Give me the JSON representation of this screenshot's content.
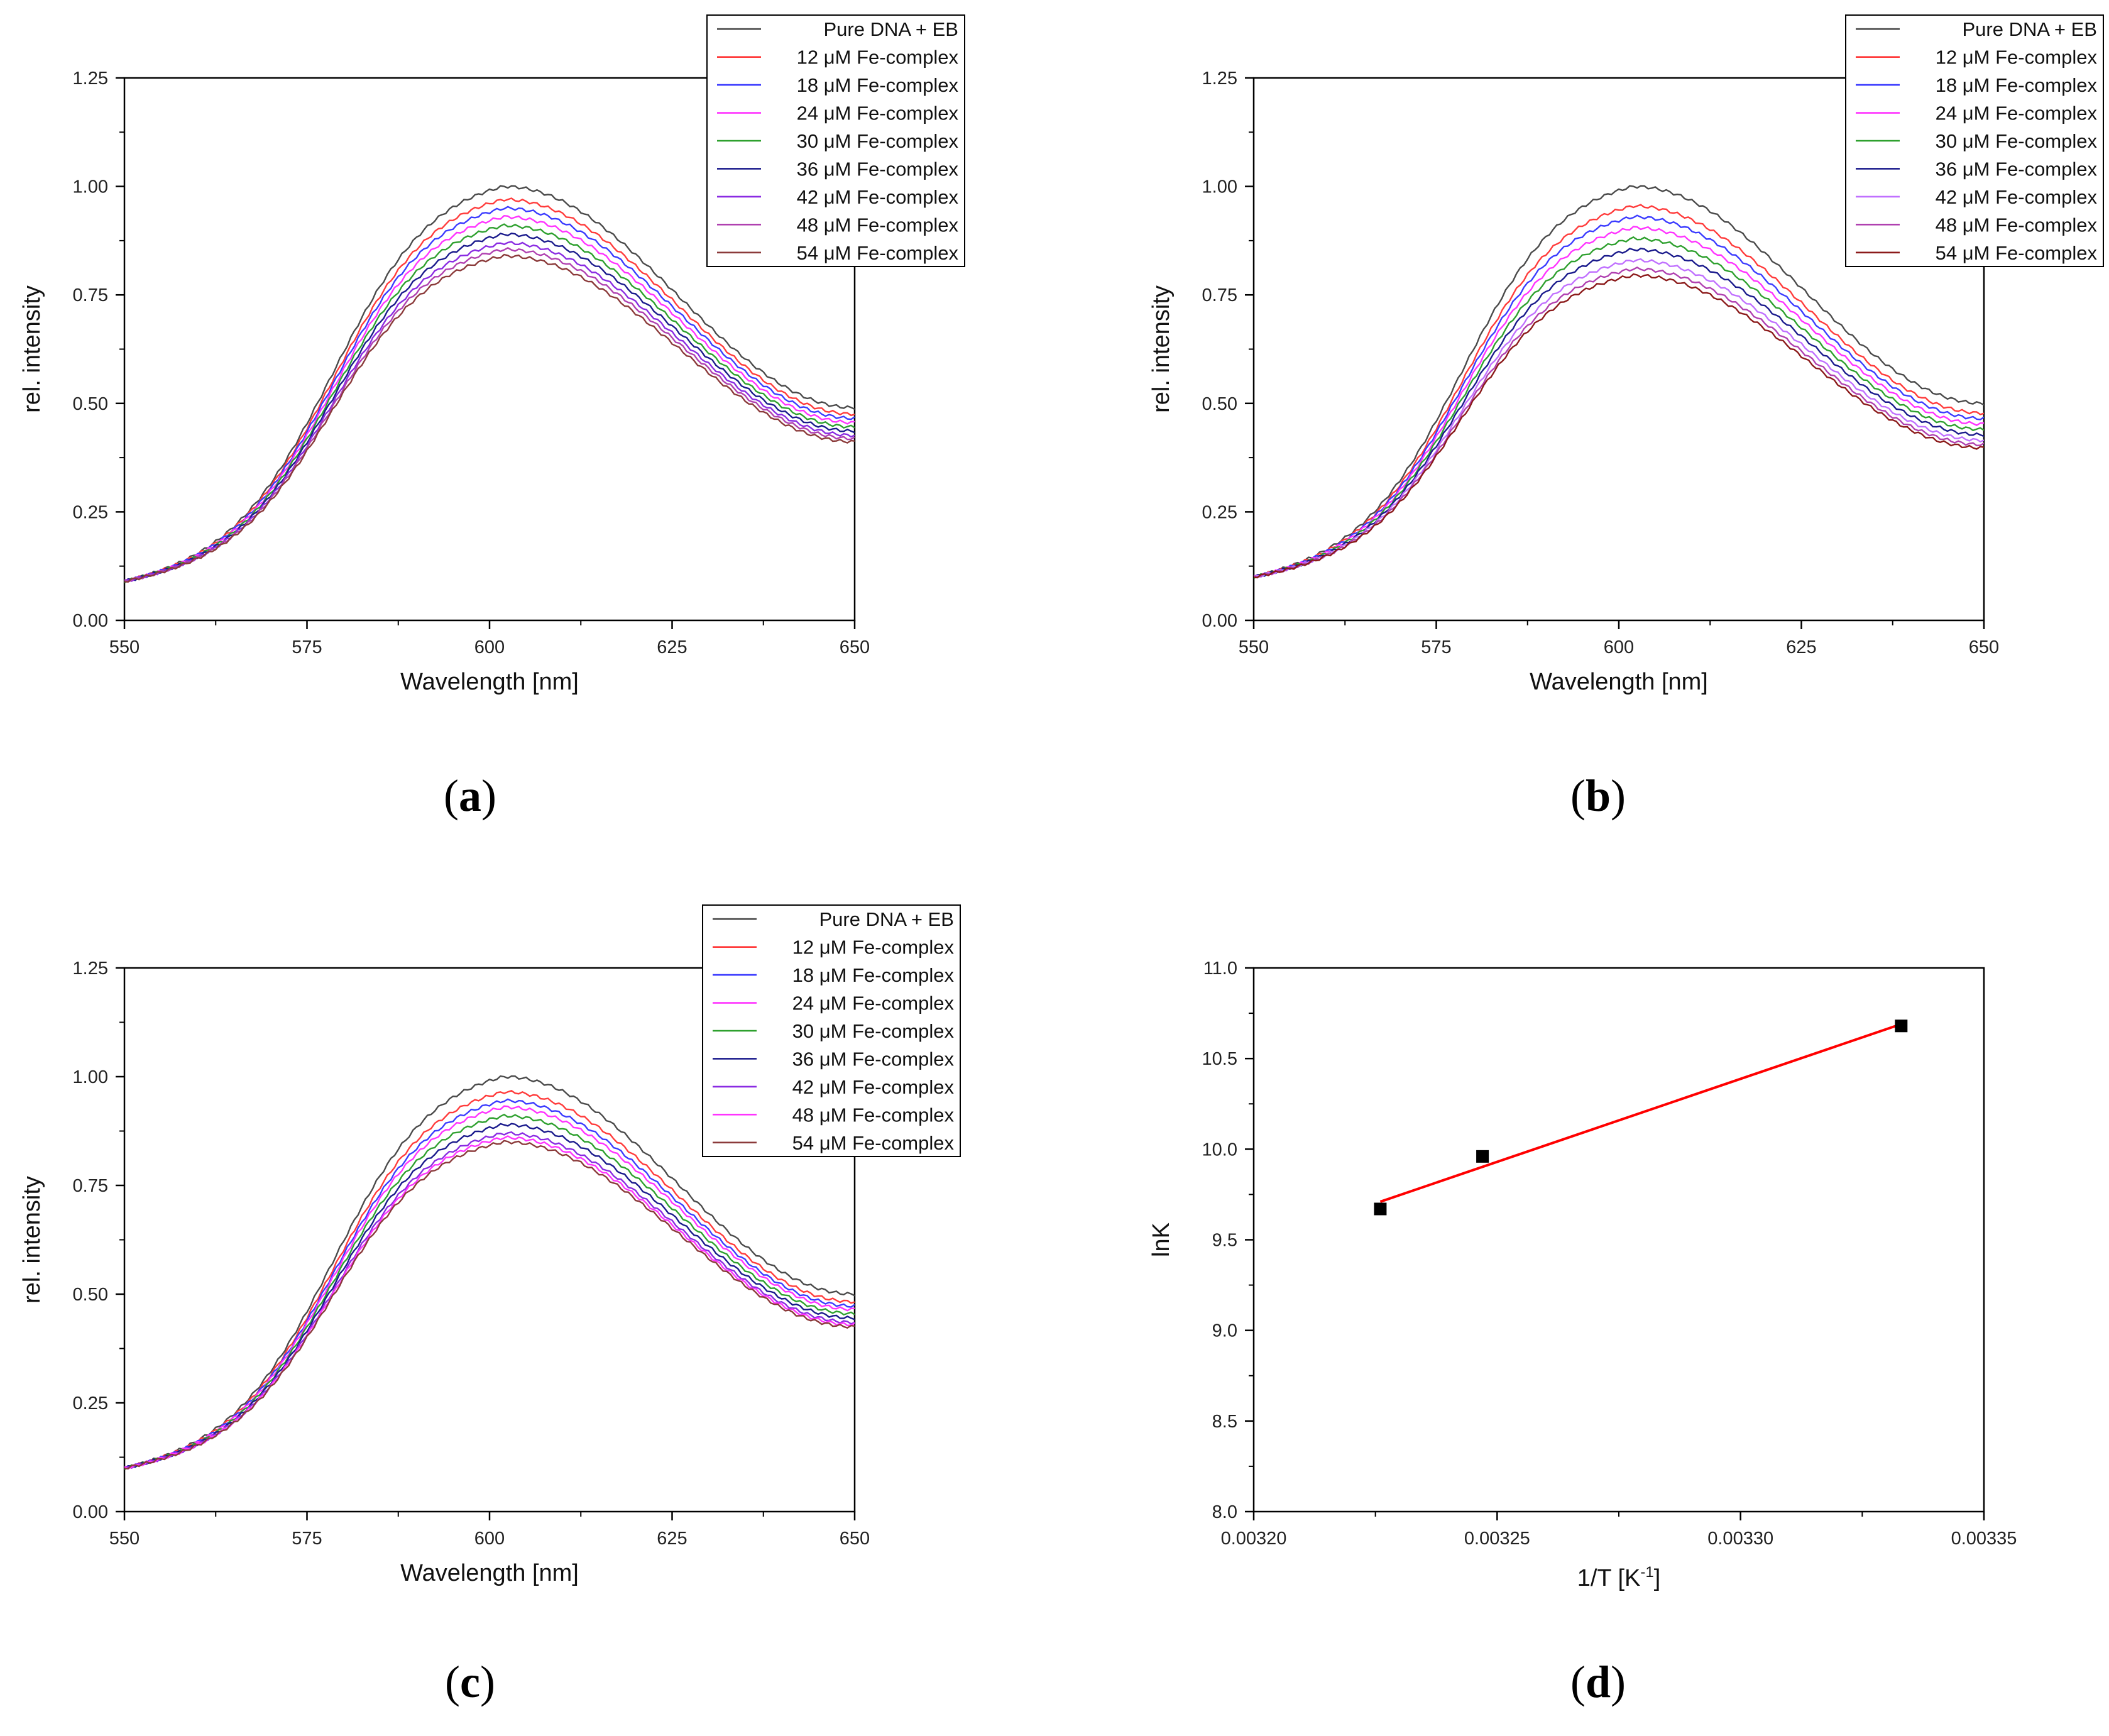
{
  "chart_data": [
    {
      "id": "a",
      "type": "line",
      "panel_label": "a",
      "xlabel": "Wavelength [nm]",
      "ylabel": "rel. intensity",
      "xlim": [
        550,
        650
      ],
      "ylim": [
        0,
        1.25
      ],
      "xticks": [
        550,
        575,
        600,
        625,
        650
      ],
      "xtick_labels": [
        "550",
        "575",
        "600",
        "625",
        "650"
      ],
      "yticks": [
        0,
        0.25,
        0.5,
        0.75,
        1.0,
        1.25
      ],
      "ytick_labels": [
        "0.00",
        "0.25",
        "0.50",
        "0.75",
        "1.00",
        "1.25"
      ],
      "legend_position": "top-right",
      "curve_shape": {
        "start": 0.09,
        "peak_x": 602,
        "end_ratio": 0.49
      },
      "series": [
        {
          "name": "Pure DNA + EB",
          "color": "#4a4a4a",
          "peak": 1.0
        },
        {
          "name": "12 μM Fe-complex",
          "color": "#ff3b3b",
          "peak": 0.97
        },
        {
          "name": "18 μM Fe-complex",
          "color": "#3b3bff",
          "peak": 0.95
        },
        {
          "name": "24 μM Fe-complex",
          "color": "#ff33ff",
          "peak": 0.93
        },
        {
          "name": "30 μM Fe-complex",
          "color": "#2ea02e",
          "peak": 0.91
        },
        {
          "name": "36 μM Fe-complex",
          "color": "#1a1a8c",
          "peak": 0.89
        },
        {
          "name": "42 μM Fe-complex",
          "color": "#8a2be2",
          "peak": 0.87
        },
        {
          "name": "48 μM Fe-complex",
          "color": "#b040b0",
          "peak": 0.855
        },
        {
          "name": "54 μM Fe-complex",
          "color": "#8b3a3a",
          "peak": 0.84
        }
      ]
    },
    {
      "id": "b",
      "type": "line",
      "panel_label": "b",
      "xlabel": "Wavelength [nm]",
      "ylabel": "rel. intensity",
      "xlim": [
        550,
        650
      ],
      "ylim": [
        0,
        1.25
      ],
      "xticks": [
        550,
        575,
        600,
        625,
        650
      ],
      "xtick_labels": [
        "550",
        "575",
        "600",
        "625",
        "650"
      ],
      "yticks": [
        0,
        0.25,
        0.5,
        0.75,
        1.0,
        1.25
      ],
      "ytick_labels": [
        "0.00",
        "0.25",
        "0.50",
        "0.75",
        "1.00",
        "1.25"
      ],
      "legend_position": "top-right",
      "curve_shape": {
        "start": 0.1,
        "peak_x": 602,
        "end_ratio": 0.5
      },
      "series": [
        {
          "name": "Pure DNA + EB",
          "color": "#4a4a4a",
          "peak": 1.0
        },
        {
          "name": "12 μM Fe-complex",
          "color": "#ff3b3b",
          "peak": 0.955
        },
        {
          "name": "18 μM Fe-complex",
          "color": "#3b3bff",
          "peak": 0.93
        },
        {
          "name": "24 μM Fe-complex",
          "color": "#ff33ff",
          "peak": 0.905
        },
        {
          "name": "30 μM Fe-complex",
          "color": "#2ea02e",
          "peak": 0.88
        },
        {
          "name": "36 μM Fe-complex",
          "color": "#1a1a8c",
          "peak": 0.855
        },
        {
          "name": "42 μM Fe-complex",
          "color": "#c070ff",
          "peak": 0.83
        },
        {
          "name": "48 μM Fe-complex",
          "color": "#b040b0",
          "peak": 0.81
        },
        {
          "name": "54 μM Fe-complex",
          "color": "#8b1a1a",
          "peak": 0.795
        }
      ]
    },
    {
      "id": "c",
      "type": "line",
      "panel_label": "c",
      "xlabel": "Wavelength [nm]",
      "ylabel": "rel. intensity",
      "xlim": [
        550,
        650
      ],
      "ylim": [
        0,
        1.25
      ],
      "xticks": [
        550,
        575,
        600,
        625,
        650
      ],
      "xtick_labels": [
        "550",
        "575",
        "600",
        "625",
        "650"
      ],
      "yticks": [
        0,
        0.25,
        0.5,
        0.75,
        1.0,
        1.25
      ],
      "ytick_labels": [
        "0.00",
        "0.25",
        "0.50",
        "0.75",
        "1.00",
        "1.25"
      ],
      "legend_position": "top-right",
      "curve_shape": {
        "start": 0.1,
        "peak_x": 602,
        "end_ratio": 0.5
      },
      "series": [
        {
          "name": "Pure DNA + EB",
          "color": "#4a4a4a",
          "peak": 1.0
        },
        {
          "name": "12 μM Fe-complex",
          "color": "#ff3b3b",
          "peak": 0.965
        },
        {
          "name": "18 μM Fe-complex",
          "color": "#3b3bff",
          "peak": 0.945
        },
        {
          "name": "24 μM Fe-complex",
          "color": "#ff33ff",
          "peak": 0.93
        },
        {
          "name": "30 μM Fe-complex",
          "color": "#2ea02e",
          "peak": 0.91
        },
        {
          "name": "36 μM Fe-complex",
          "color": "#1a1a8c",
          "peak": 0.89
        },
        {
          "name": "42 μM Fe-complex",
          "color": "#8a2be2",
          "peak": 0.87
        },
        {
          "name": "48 μM Fe-complex",
          "color": "#ff33ff",
          "peak": 0.86
        },
        {
          "name": "54 μM Fe-complex",
          "color": "#8b3a3a",
          "peak": 0.85
        }
      ]
    },
    {
      "id": "d",
      "type": "scatter",
      "panel_label": "d",
      "xlabel_main": "1/T [K",
      "xlabel_sup": "-1",
      "xlabel_close": "]",
      "ylabel": "lnK",
      "xlim": [
        0.0032,
        0.00335
      ],
      "ylim": [
        8.0,
        11.0
      ],
      "xticks": [
        0.0032,
        0.00325,
        0.0033,
        0.00335
      ],
      "xtick_labels": [
        "0.00320",
        "0.00325",
        "0.00330",
        "0.00335"
      ],
      "yticks": [
        8.0,
        8.5,
        9.0,
        9.5,
        10.0,
        10.5,
        11.0
      ],
      "ytick_labels": [
        "8.0",
        "8.5",
        "9.0",
        "9.5",
        "10.0",
        "10.5",
        "11.0"
      ],
      "points": [
        {
          "x": 0.003226,
          "y": 9.67
        },
        {
          "x": 0.003247,
          "y": 9.96
        },
        {
          "x": 0.003333,
          "y": 10.68
        }
      ],
      "point_color": "#000000",
      "fit_line": {
        "x": [
          0.003226,
          0.003333
        ],
        "y": [
          9.71,
          10.69
        ],
        "color": "#ff0000"
      }
    }
  ]
}
